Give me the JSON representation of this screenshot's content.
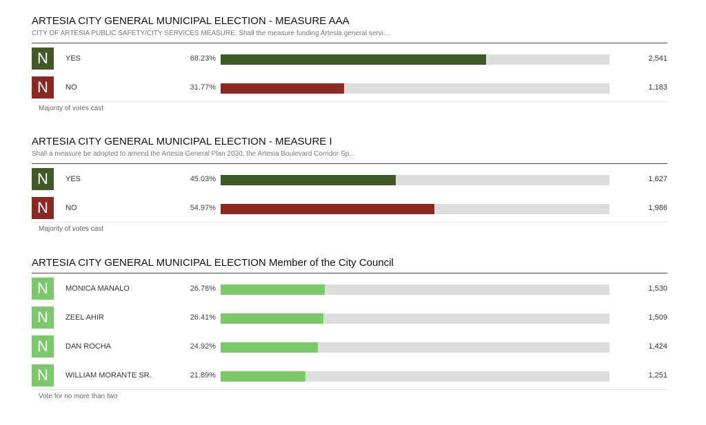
{
  "colors": {
    "yes": "#3f5a27",
    "no": "#8a2923",
    "candidate": "#7bc96a",
    "track": "#dddddd"
  },
  "contests": [
    {
      "title": "ARTESIA CITY GENERAL MUNICIPAL ELECTION - MEASURE AAA",
      "description": "CITY OF ARTESIA PUBLIC SAFETY/CITY SERVICES MEASURE. Shall the measure funding Artesia general servi...",
      "note": "Majority of votes cast",
      "choices": [
        {
          "badge": "N",
          "name": "YES",
          "percent_label": "68.23%",
          "percent": 68.23,
          "votes": "2,541",
          "color": "#3f5a27"
        },
        {
          "badge": "N",
          "name": "NO",
          "percent_label": "31.77%",
          "percent": 31.77,
          "votes": "1,183",
          "color": "#8a2923"
        }
      ]
    },
    {
      "title": "ARTESIA CITY GENERAL MUNICIPAL ELECTION - MEASURE I",
      "description": "Shall a measure be adopted to amend the Artesia General Plan 2030, the Artesia Boulevard Corridor Sp...",
      "note": "Majority of votes cast",
      "choices": [
        {
          "badge": "N",
          "name": "YES",
          "percent_label": "45.03%",
          "percent": 45.03,
          "votes": "1,627",
          "color": "#3f5a27"
        },
        {
          "badge": "N",
          "name": "NO",
          "percent_label": "54.97%",
          "percent": 54.97,
          "votes": "1,986",
          "color": "#8a2923"
        }
      ]
    },
    {
      "title": "ARTESIA CITY GENERAL MUNICIPAL ELECTION Member of the City Council",
      "description": "",
      "note": "Vote for no more than two",
      "choices": [
        {
          "badge": "N",
          "name": "MONICA MANALO",
          "percent_label": "26.78%",
          "percent": 26.78,
          "votes": "1,530",
          "color": "#7bc96a"
        },
        {
          "badge": "N",
          "name": "ZEEL AHIR",
          "percent_label": "26.41%",
          "percent": 26.41,
          "votes": "1,509",
          "color": "#7bc96a"
        },
        {
          "badge": "N",
          "name": "DAN ROCHA",
          "percent_label": "24.92%",
          "percent": 24.92,
          "votes": "1,424",
          "color": "#7bc96a"
        },
        {
          "badge": "N",
          "name": "WILLIAM MORANTE SR.",
          "percent_label": "21.89%",
          "percent": 21.89,
          "votes": "1,251",
          "color": "#7bc96a"
        }
      ]
    }
  ]
}
